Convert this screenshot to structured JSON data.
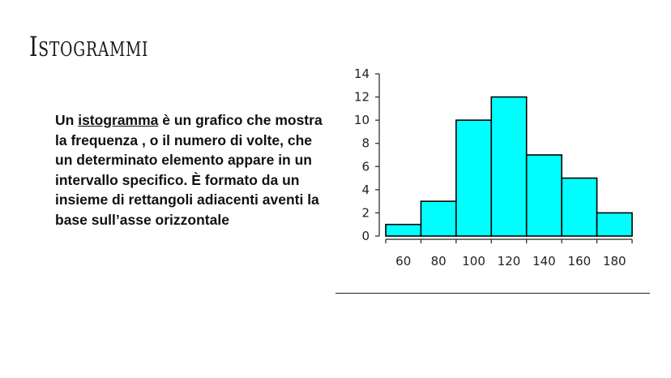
{
  "slide": {
    "title": "Istogrammi",
    "paragraph": {
      "before": "Un ",
      "highlight": "istogramma",
      "after": " è un grafico che mostra la frequenza , o il numero di volte, che un determinato elemento appare in un intervallo specifico. È formato da un insieme di rettangoli adiacenti aventi la base sull’asse orizzontale"
    }
  },
  "chart_data": {
    "type": "bar",
    "title": "",
    "xlabel": "",
    "ylabel": "",
    "bin_edges": [
      40,
      60,
      80,
      100,
      120,
      140,
      160,
      180
    ],
    "values": [
      1,
      3,
      10,
      12,
      7,
      5,
      2
    ],
    "x_tick_labels": [
      "60",
      "80",
      "100",
      "120",
      "140",
      "160",
      "180"
    ],
    "y_ticks": [
      0,
      2,
      4,
      6,
      8,
      10,
      12,
      14
    ],
    "ylim": [
      0,
      14
    ],
    "grid": false,
    "bar_color": "#00ffff",
    "edge_color": "#000000"
  }
}
